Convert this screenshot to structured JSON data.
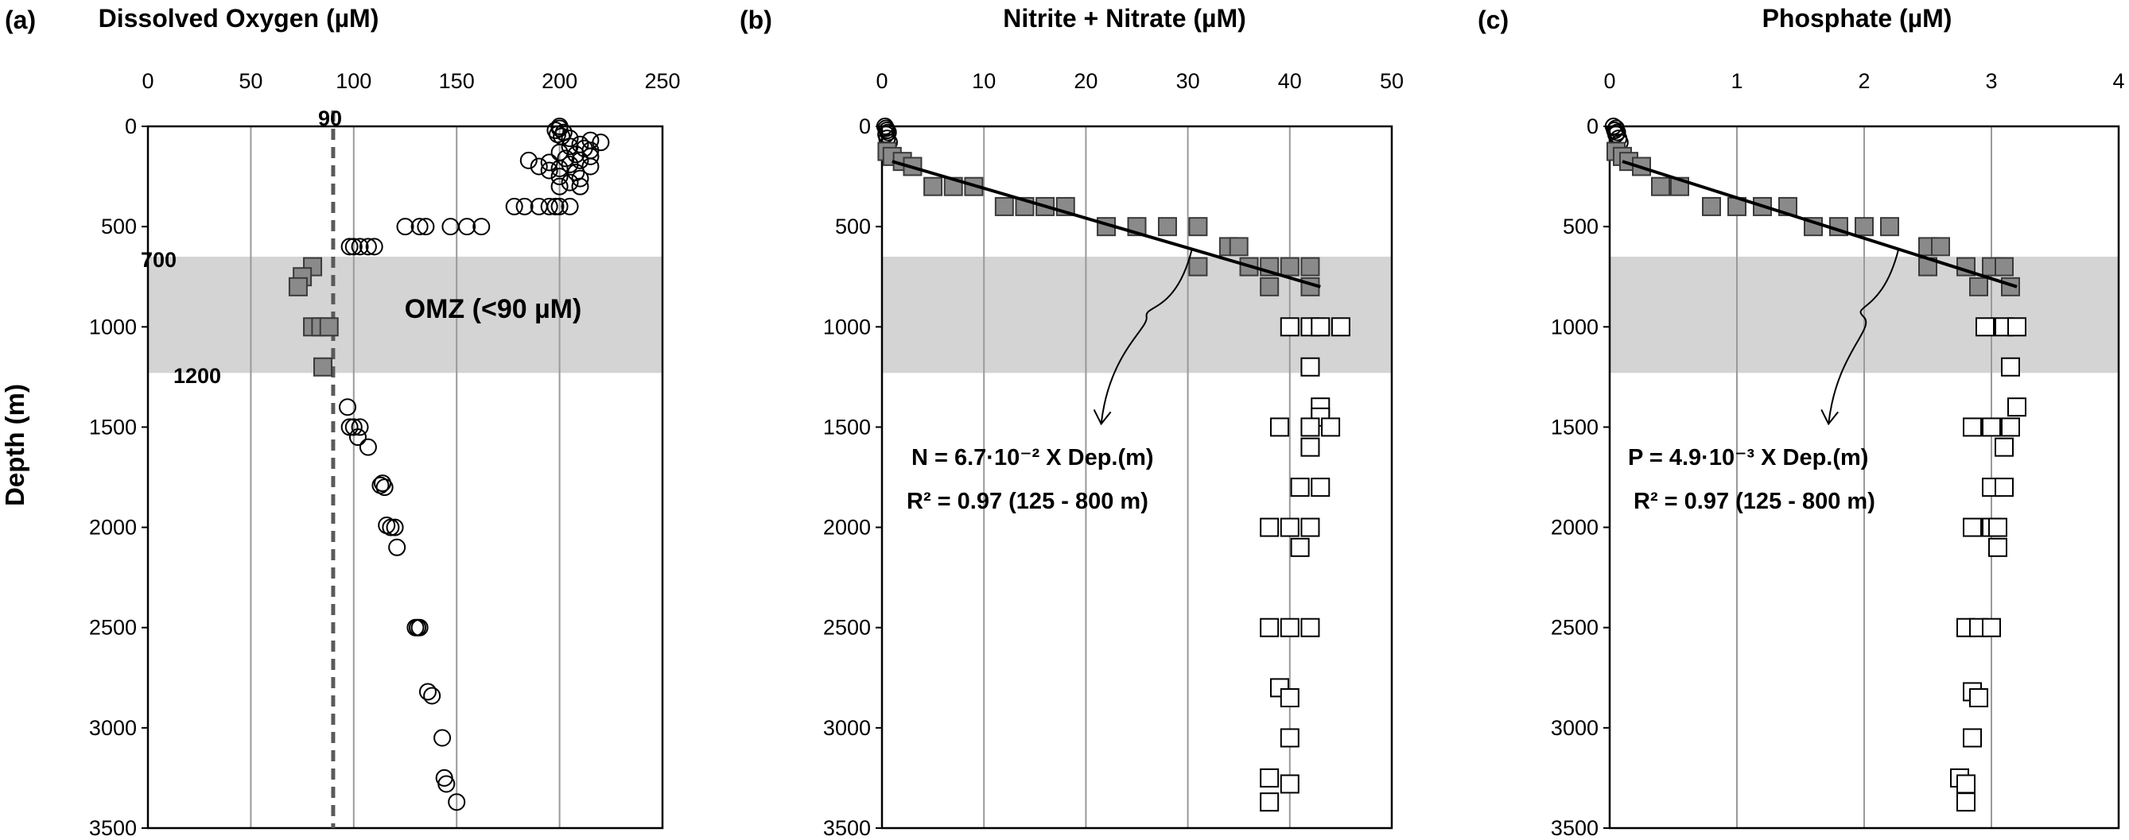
{
  "chart_data": [
    {
      "type": "scatter",
      "panel_label": "(a)",
      "title": "Dissolved Oxygen (µM)",
      "xlabel": "",
      "ylabel": "Depth (m)",
      "xlim": [
        0,
        250
      ],
      "ylim": [
        0,
        3500
      ],
      "y_inverted": true,
      "x_axis_position": "top",
      "grid": "vertical",
      "xticks": [
        "0",
        "50",
        "100",
        "150",
        "200",
        "250"
      ],
      "yticks": [
        "0",
        "500",
        "1000",
        "1500",
        "2000",
        "2500",
        "3000",
        "3500"
      ],
      "omz_band": {
        "from": 650,
        "to": 1230,
        "label": "OMZ (<90 µM)",
        "top_label": "700",
        "bottom_label": "1200"
      },
      "reference_line": {
        "x": 90,
        "label": "90",
        "style": "dashed"
      },
      "series": [
        {
          "marker": "circle-open",
          "points": [
            [
              200,
              0
            ],
            [
              200,
              10
            ],
            [
              198,
              20
            ],
            [
              202,
              30
            ],
            [
              199,
              40
            ],
            [
              201,
              50
            ],
            [
              205,
              60
            ],
            [
              215,
              70
            ],
            [
              220,
              80
            ],
            [
              210,
              90
            ],
            [
              205,
              100
            ],
            [
              212,
              110
            ],
            [
              215,
              120
            ],
            [
              200,
              130
            ],
            [
              208,
              140
            ],
            [
              215,
              150
            ],
            [
              203,
              160
            ],
            [
              210,
              170
            ],
            [
              195,
              180
            ],
            [
              205,
              190
            ],
            [
              215,
              200
            ],
            [
              200,
              210
            ],
            [
              185,
              170
            ],
            [
              190,
              200
            ],
            [
              195,
              220
            ],
            [
              208,
              230
            ],
            [
              200,
              250
            ],
            [
              210,
              260
            ],
            [
              205,
              280
            ],
            [
              200,
              300
            ],
            [
              210,
              300
            ],
            [
              190,
              400
            ],
            [
              195,
              400
            ],
            [
              198,
              400
            ],
            [
              183,
              400
            ],
            [
              200,
              400
            ],
            [
              178,
              400
            ],
            [
              205,
              400
            ],
            [
              125,
              500
            ],
            [
              147,
              500
            ],
            [
              155,
              500
            ],
            [
              162,
              500
            ],
            [
              135,
              500
            ],
            [
              132,
              500
            ],
            [
              98,
              600
            ],
            [
              103,
              600
            ],
            [
              107,
              600
            ],
            [
              100,
              600
            ],
            [
              110,
              600
            ],
            [
              97,
              1400
            ],
            [
              98,
              1500
            ],
            [
              100,
              1500
            ],
            [
              103,
              1500
            ],
            [
              102,
              1550
            ],
            [
              107,
              1600
            ],
            [
              114,
              1780
            ],
            [
              113,
              1790
            ],
            [
              115,
              1800
            ],
            [
              116,
              1990
            ],
            [
              118,
              2000
            ],
            [
              120,
              2000
            ],
            [
              121,
              2100
            ],
            [
              130,
              2500
            ],
            [
              131,
              2500
            ],
            [
              132,
              2500
            ],
            [
              136,
              2820
            ],
            [
              138,
              2840
            ],
            [
              143,
              3050
            ],
            [
              144,
              3250
            ],
            [
              145,
              3280
            ],
            [
              150,
              3370
            ]
          ]
        },
        {
          "marker": "square-filled",
          "points": [
            [
              80,
              700
            ],
            [
              75,
              750
            ],
            [
              73,
              800
            ],
            [
              80,
              1000
            ],
            [
              84,
              1000
            ],
            [
              88,
              1000
            ],
            [
              85,
              1200
            ]
          ]
        }
      ]
    },
    {
      "type": "scatter",
      "panel_label": "(b)",
      "title": "Nitrite + Nitrate (µM)",
      "xlabel": "",
      "ylabel": "",
      "xlim": [
        0,
        50
      ],
      "ylim": [
        0,
        3500
      ],
      "y_inverted": true,
      "x_axis_position": "top",
      "grid": "vertical",
      "xticks": [
        "0",
        "10",
        "20",
        "30",
        "40",
        "50"
      ],
      "yticks": [
        "0",
        "500",
        "1000",
        "1500",
        "2000",
        "2500",
        "3000",
        "3500"
      ],
      "omz_band": {
        "from": 650,
        "to": 1230
      },
      "fit_line": {
        "x": [
          1,
          43
        ],
        "y": [
          175,
          800
        ]
      },
      "annotation": [
        "N = 6.7·10⁻² X Dep.(m)",
        "R² = 0.97 (125 - 800 m)"
      ],
      "series": [
        {
          "marker": "circle-open",
          "points": [
            [
              0.3,
              0
            ],
            [
              0.4,
              10
            ],
            [
              0.5,
              20
            ],
            [
              0.6,
              30
            ],
            [
              0.4,
              40
            ],
            [
              0.5,
              60
            ],
            [
              0.7,
              80
            ]
          ]
        },
        {
          "marker": "square-filled",
          "points": [
            [
              0.5,
              125
            ],
            [
              1,
              150
            ],
            [
              2,
              175
            ],
            [
              3,
              200
            ],
            [
              5,
              300
            ],
            [
              7,
              300
            ],
            [
              9,
              300
            ],
            [
              12,
              400
            ],
            [
              14,
              400
            ],
            [
              16,
              400
            ],
            [
              18,
              400
            ],
            [
              22,
              500
            ],
            [
              25,
              500
            ],
            [
              28,
              500
            ],
            [
              31,
              500
            ],
            [
              34,
              600
            ],
            [
              35,
              600
            ],
            [
              31,
              700
            ],
            [
              36,
              700
            ],
            [
              38,
              700
            ],
            [
              40,
              700
            ],
            [
              42,
              700
            ],
            [
              38,
              800
            ],
            [
              42,
              800
            ]
          ]
        },
        {
          "marker": "square-open",
          "points": [
            [
              40,
              1000
            ],
            [
              42,
              1000
            ],
            [
              43,
              1000
            ],
            [
              45,
              1000
            ],
            [
              42,
              1200
            ],
            [
              43,
              1400
            ],
            [
              43,
              1450
            ],
            [
              39,
              1500
            ],
            [
              42,
              1500
            ],
            [
              44,
              1500
            ],
            [
              42,
              1600
            ],
            [
              41,
              1800
            ],
            [
              43,
              1800
            ],
            [
              38,
              2000
            ],
            [
              40,
              2000
            ],
            [
              42,
              2000
            ],
            [
              41,
              2100
            ],
            [
              38,
              2500
            ],
            [
              40,
              2500
            ],
            [
              42,
              2500
            ],
            [
              39,
              2800
            ],
            [
              40,
              2850
            ],
            [
              40,
              3050
            ],
            [
              38,
              3250
            ],
            [
              40,
              3280
            ],
            [
              38,
              3370
            ]
          ]
        }
      ]
    },
    {
      "type": "scatter",
      "panel_label": "(c)",
      "title": "Phosphate (µM)",
      "xlabel": "",
      "ylabel": "",
      "xlim": [
        0,
        4
      ],
      "ylim": [
        0,
        3500
      ],
      "y_inverted": true,
      "x_axis_position": "top",
      "grid": "vertical",
      "xticks": [
        "0",
        "1",
        "2",
        "3",
        "4"
      ],
      "yticks": [
        "0",
        "500",
        "1000",
        "1500",
        "2000",
        "2500",
        "3000",
        "3500"
      ],
      "omz_band": {
        "from": 650,
        "to": 1230
      },
      "fit_line": {
        "x": [
          0.1,
          3.2
        ],
        "y": [
          175,
          800
        ]
      },
      "annotation": [
        "P = 4.9·10⁻³ X Dep.(m)",
        "R² = 0.97 (125 - 800 m)"
      ],
      "series": [
        {
          "marker": "circle-open",
          "points": [
            [
              0.03,
              0
            ],
            [
              0.05,
              10
            ],
            [
              0.04,
              20
            ],
            [
              0.06,
              30
            ],
            [
              0.05,
              40
            ],
            [
              0.07,
              60
            ],
            [
              0.08,
              80
            ]
          ]
        },
        {
          "marker": "square-filled",
          "points": [
            [
              0.05,
              125
            ],
            [
              0.1,
              150
            ],
            [
              0.15,
              175
            ],
            [
              0.25,
              200
            ],
            [
              0.4,
              300
            ],
            [
              0.55,
              300
            ],
            [
              0.8,
              400
            ],
            [
              1,
              400
            ],
            [
              1.2,
              400
            ],
            [
              1.4,
              400
            ],
            [
              1.6,
              500
            ],
            [
              1.8,
              500
            ],
            [
              2,
              500
            ],
            [
              2.2,
              500
            ],
            [
              2.5,
              600
            ],
            [
              2.6,
              600
            ],
            [
              2.5,
              700
            ],
            [
              2.8,
              700
            ],
            [
              3,
              700
            ],
            [
              3.1,
              700
            ],
            [
              2.9,
              800
            ],
            [
              3.15,
              800
            ]
          ]
        },
        {
          "marker": "square-open",
          "points": [
            [
              2.95,
              1000
            ],
            [
              3.1,
              1000
            ],
            [
              3.2,
              1000
            ],
            [
              3.15,
              1200
            ],
            [
              3.2,
              1400
            ],
            [
              2.85,
              1500
            ],
            [
              3,
              1500
            ],
            [
              3.15,
              1500
            ],
            [
              3.1,
              1600
            ],
            [
              3,
              1800
            ],
            [
              3.1,
              1800
            ],
            [
              2.85,
              2000
            ],
            [
              3,
              2000
            ],
            [
              3.05,
              2000
            ],
            [
              3.05,
              2100
            ],
            [
              2.8,
              2500
            ],
            [
              2.9,
              2500
            ],
            [
              3,
              2500
            ],
            [
              2.85,
              2820
            ],
            [
              2.9,
              2850
            ],
            [
              2.85,
              3050
            ],
            [
              2.75,
              3250
            ],
            [
              2.8,
              3280
            ],
            [
              2.8,
              3370
            ]
          ]
        }
      ]
    }
  ]
}
